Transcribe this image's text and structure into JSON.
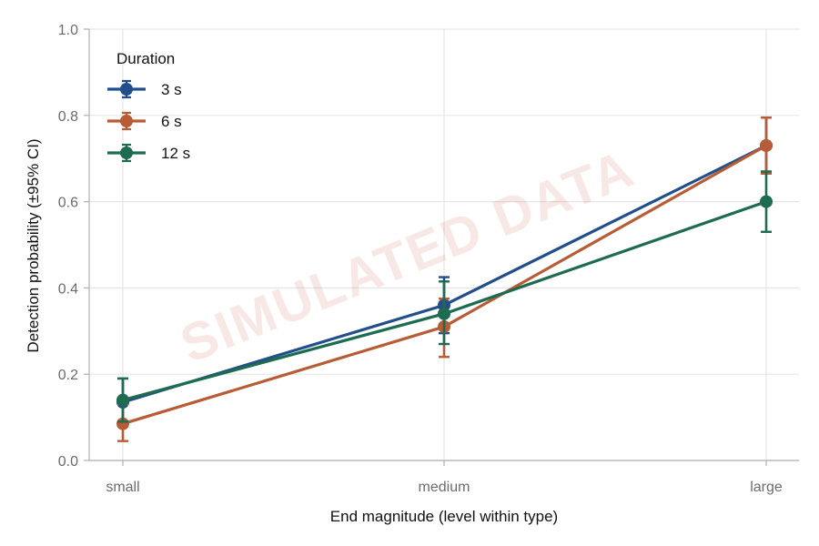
{
  "chart_data": {
    "type": "line",
    "title": "",
    "xlabel": "End magnitude (level within type)",
    "ylabel": "Detection probability (±95% CI)",
    "categories": [
      "small",
      "medium",
      "large"
    ],
    "ylim": [
      0,
      1
    ],
    "yticks": [
      0.0,
      0.2,
      0.4,
      0.6,
      0.8,
      1.0
    ],
    "ytick_labels": [
      "0.0",
      "0.2",
      "0.4",
      "0.6",
      "0.8",
      "1.0"
    ],
    "grid": true,
    "legend": {
      "title": "Duration",
      "placement": "top-left"
    },
    "watermark": "SIMULATED DATA",
    "series": [
      {
        "name": "3 s",
        "color": "#234e8c",
        "values": [
          0.135,
          0.36,
          0.73
        ],
        "ci_low": [
          0.085,
          0.295,
          0.665
        ],
        "ci_high": [
          0.19,
          0.425,
          0.795
        ]
      },
      {
        "name": "6 s",
        "color": "#b85c35",
        "values": [
          0.085,
          0.31,
          0.73
        ],
        "ci_low": [
          0.045,
          0.24,
          0.665
        ],
        "ci_high": [
          0.13,
          0.375,
          0.795
        ]
      },
      {
        "name": "12 s",
        "color": "#1d6b50",
        "values": [
          0.14,
          0.34,
          0.6
        ],
        "ci_low": [
          0.09,
          0.27,
          0.53
        ],
        "ci_high": [
          0.19,
          0.415,
          0.67
        ]
      }
    ]
  }
}
